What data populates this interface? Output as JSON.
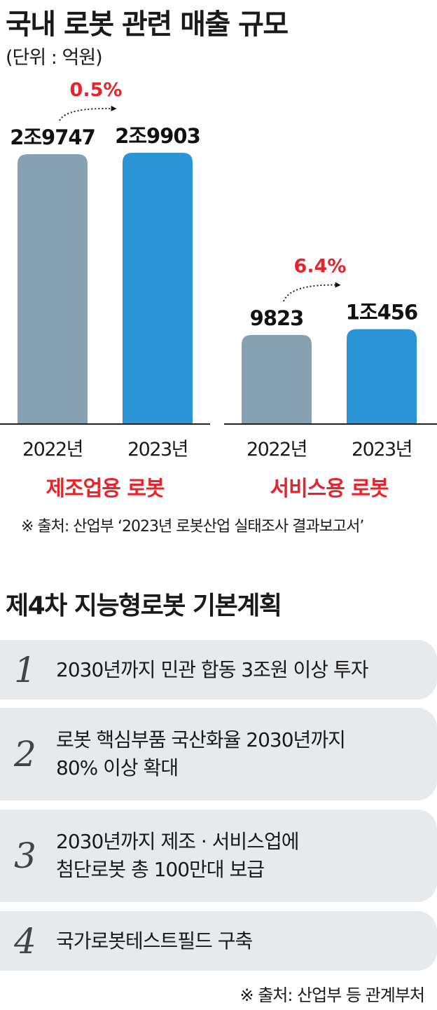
{
  "title": "국내 로봇 관련 매출 규모",
  "unit": "(단위 : 억원)",
  "chart_data": {
    "type": "bar",
    "title": "국내 로봇 관련 매출 규모",
    "unit": "(단위 : 억원)",
    "groups": [
      {
        "name": "제조업용 로봇",
        "categories": [
          "2022년",
          "2023년"
        ],
        "values": [
          29747,
          29903
        ],
        "value_labels": [
          "2조9747",
          "2조9903"
        ],
        "growth_label": "0.5%"
      },
      {
        "name": "서비스용 로봇",
        "categories": [
          "2022년",
          "2023년"
        ],
        "values": [
          9823,
          10456
        ],
        "value_labels": [
          "9823",
          "1조456"
        ],
        "growth_label": "6.4%"
      }
    ],
    "colors": {
      "prev": "#86a1b1",
      "curr": "#2a94d6",
      "group_label": "#e8242b",
      "growth": "#e8242b"
    },
    "ylim": [
      0,
      32000
    ],
    "grid": false
  },
  "source1": "※ 출처: 산업부 ‘2023년 로봇산업 실태조사 결과보고서’",
  "plan_title": "제4차 지능형로봇 기본계획",
  "plan_items": [
    {
      "num": "1",
      "text": "2030년까지 민관 합동 3조원 이상 투자"
    },
    {
      "num": "2",
      "text": "로봇 핵심부품 국산화율 2030년까지\n80% 이상 확대"
    },
    {
      "num": "3",
      "text": "2030년까지 제조 · 서비스업에\n첨단로봇 총 100만대 보급"
    },
    {
      "num": "4",
      "text": "국가로봇테스트필드 구축"
    }
  ],
  "source2": "※ 출처: 산업부 등 관계부처"
}
